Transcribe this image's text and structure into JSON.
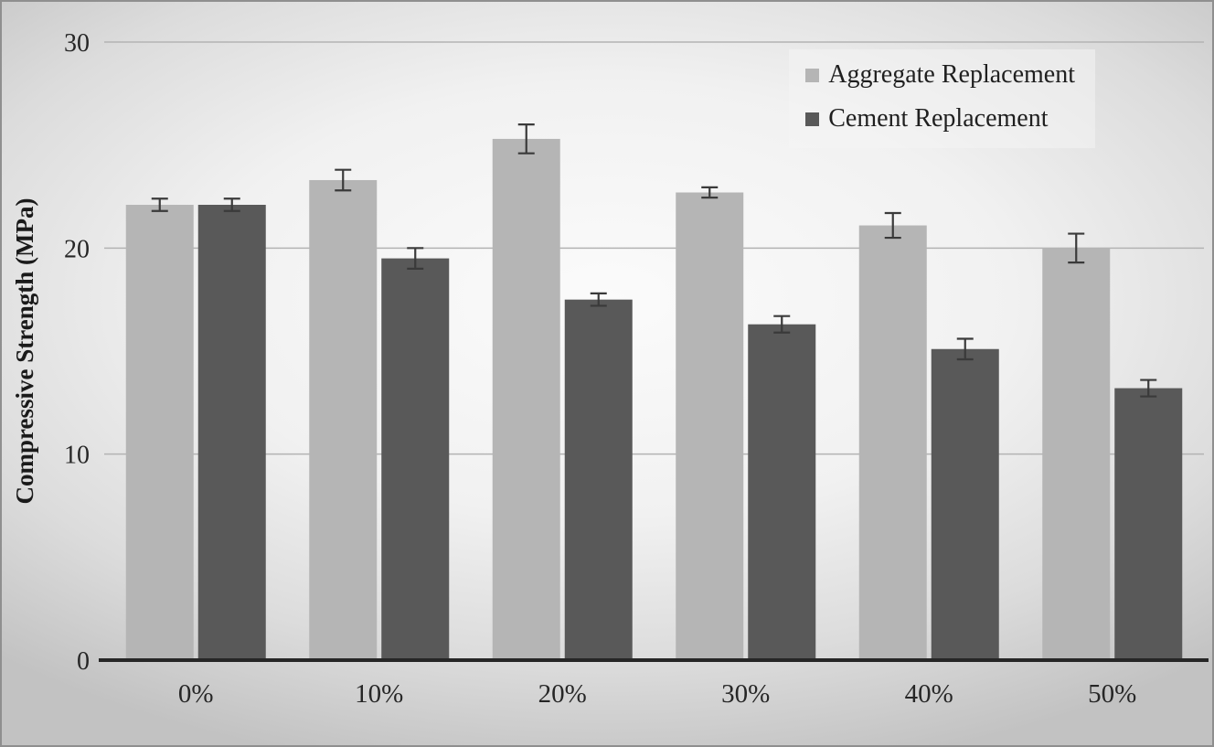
{
  "chart_data": {
    "type": "bar",
    "title": "",
    "categories": [
      "0%",
      "10%",
      "20%",
      "30%",
      "40%",
      "50%"
    ],
    "series": [
      {
        "name": "Aggregate Replacement",
        "color": "#b5b5b5",
        "values": [
          22.1,
          23.3,
          25.3,
          22.7,
          21.1,
          20.0
        ],
        "errors": [
          0.3,
          0.5,
          0.7,
          0.25,
          0.6,
          0.7
        ]
      },
      {
        "name": "Cement Replacement",
        "color": "#595959",
        "values": [
          22.1,
          19.5,
          17.5,
          16.3,
          15.1,
          13.2
        ],
        "errors": [
          0.3,
          0.5,
          0.3,
          0.4,
          0.5,
          0.4
        ]
      }
    ],
    "xlabel": "",
    "ylabel": "Compressive Strength (MPa)",
    "ylim": [
      0,
      30
    ],
    "yticks": [
      0,
      10,
      20,
      30
    ],
    "grid": true,
    "error_bars": true,
    "legend_position": "top-right",
    "colors": {
      "gridline": "#b3b3b3",
      "axis_line": "#262626",
      "text": "#262626",
      "error_bar": "#3a3a3a"
    }
  }
}
